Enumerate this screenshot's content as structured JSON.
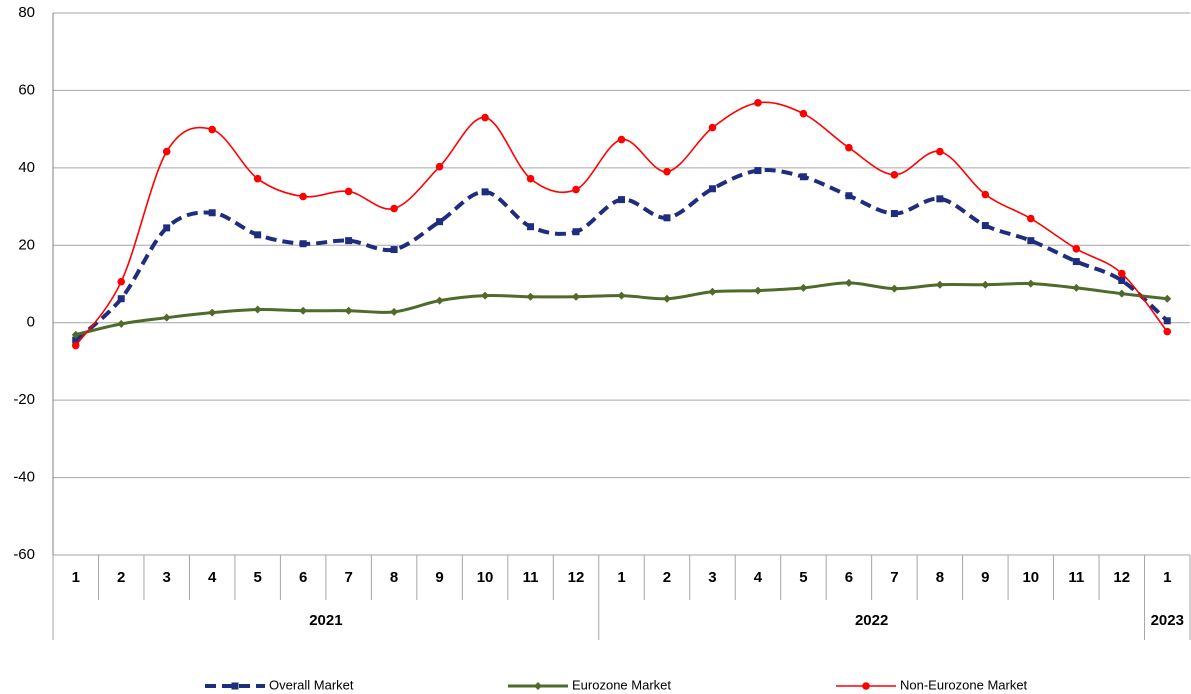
{
  "chart_data": {
    "type": "line",
    "categories": [
      "1",
      "2",
      "3",
      "4",
      "5",
      "6",
      "7",
      "8",
      "9",
      "10",
      "11",
      "12",
      "1",
      "2",
      "3",
      "4",
      "5",
      "6",
      "7",
      "8",
      "9",
      "10",
      "11",
      "12",
      "1"
    ],
    "year_labels": [
      "2021",
      "2022",
      "2023"
    ],
    "ylim": [
      -60,
      80
    ],
    "yticks": [
      -60,
      -40,
      -20,
      0,
      20,
      40,
      60,
      80
    ],
    "grid": true,
    "series": [
      {
        "name": "Overall Market",
        "color": "#1f2d7f",
        "dash": true,
        "marker": "square",
        "values": [
          -4.5,
          6.2,
          24.5,
          28.4,
          22.7,
          20.4,
          21.2,
          18.9,
          26.1,
          33.8,
          24.8,
          23.5,
          31.8,
          27.1,
          34.6,
          39.3,
          37.7,
          32.8,
          28.2,
          32.0,
          25.1,
          21.2,
          15.8,
          10.9,
          0.5
        ]
      },
      {
        "name": "Eurozone Market",
        "color": "#4e6b2a",
        "dash": false,
        "marker": "diamond",
        "values": [
          -3.1,
          -0.3,
          1.3,
          2.6,
          3.4,
          3.1,
          3.1,
          2.8,
          5.7,
          7.0,
          6.7,
          6.7,
          7.0,
          6.2,
          8.0,
          8.3,
          9.0,
          10.3,
          8.8,
          9.8,
          9.8,
          10.1,
          9.0,
          7.5,
          6.2
        ]
      },
      {
        "name": "Non-Eurozone Market",
        "color": "#ff0000",
        "dash": false,
        "marker": "circle",
        "values": [
          -5.9,
          10.6,
          44.2,
          49.9,
          37.2,
          32.6,
          33.9,
          29.5,
          40.3,
          53.0,
          37.2,
          34.4,
          47.3,
          39.0,
          50.4,
          56.8,
          54.0,
          45.2,
          38.2,
          44.2,
          33.1,
          26.9,
          19.1,
          12.7,
          -2.3
        ]
      }
    ]
  }
}
